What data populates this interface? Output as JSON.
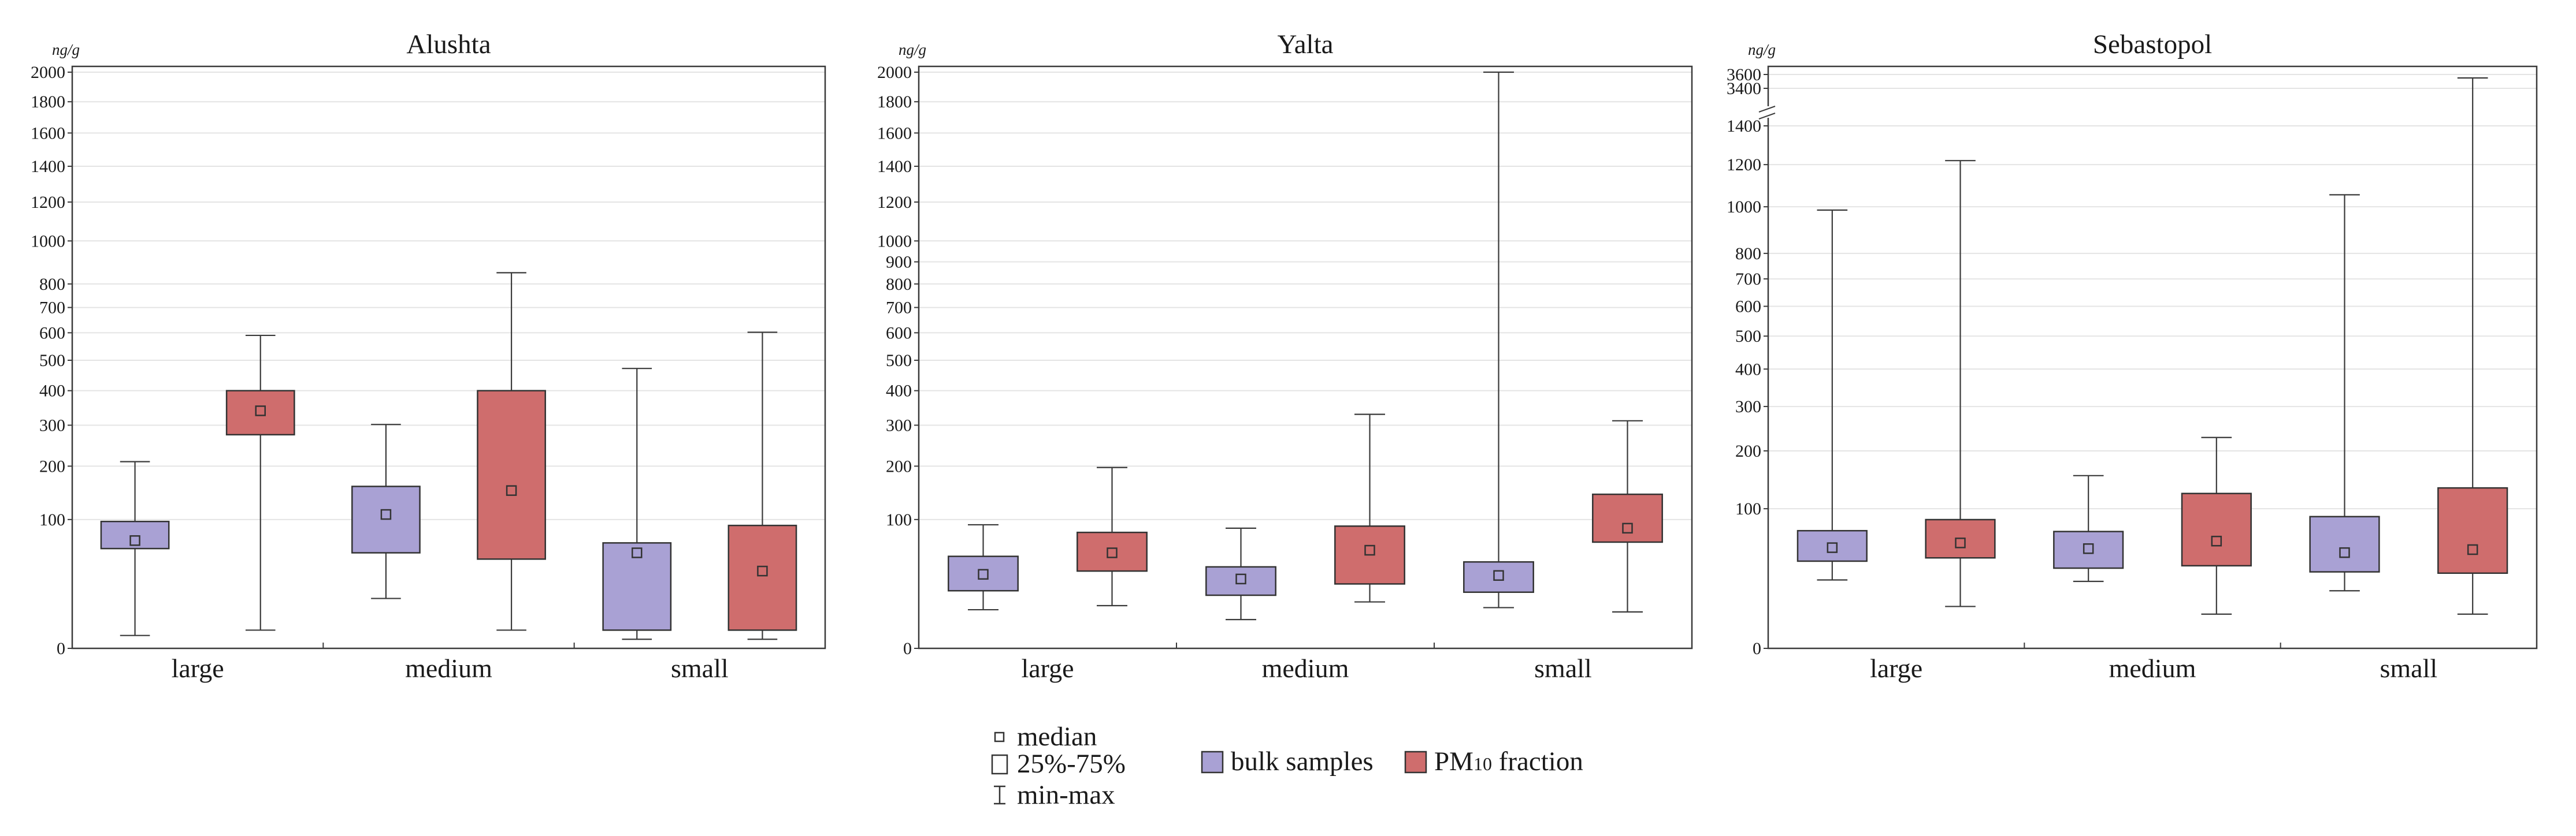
{
  "colors": {
    "bulk": "#a9a1d4",
    "pm10": "#cf6d6d",
    "stroke": "#333333",
    "grid": "#e4e4e4"
  },
  "legend": {
    "median": "median",
    "iqr": "25%-75%",
    "minmax": "min-max",
    "bulk": "bulk samples",
    "pm10_base": "PM",
    "pm10_sub": "10",
    "pm10_rest": " fraction"
  },
  "chart_data": [
    {
      "type": "box",
      "title": "Alushta",
      "unit": "ng/g",
      "y_scale": "sqrt",
      "ylim": [
        0,
        2000
      ],
      "ticks": [
        0,
        100,
        200,
        300,
        400,
        500,
        600,
        700,
        800,
        1000,
        1200,
        1400,
        1600,
        1800,
        2000
      ],
      "categories": [
        "large",
        "medium",
        "small"
      ],
      "series_names": [
        "bulk samples",
        "PM10 fraction"
      ],
      "boxes": [
        {
          "category": "large",
          "series": "bulk samples",
          "min": 1,
          "q1": 60,
          "median": 70,
          "q3": 97,
          "max": 210
        },
        {
          "category": "large",
          "series": "PM10 fraction",
          "min": 2,
          "q1": 275,
          "median": 340,
          "q3": 400,
          "max": 590
        },
        {
          "category": "medium",
          "series": "bulk samples",
          "min": 15,
          "q1": 55,
          "median": 108,
          "q3": 158,
          "max": 302
        },
        {
          "category": "medium",
          "series": "PM10 fraction",
          "min": 2,
          "q1": 48,
          "median": 150,
          "q3": 400,
          "max": 850
        },
        {
          "category": "small",
          "series": "bulk samples",
          "min": 0.5,
          "q1": 2,
          "median": 55,
          "q3": 67,
          "max": 472
        },
        {
          "category": "small",
          "series": "PM10 fraction",
          "min": 0.5,
          "q1": 2,
          "median": 36,
          "q3": 91,
          "max": 602
        }
      ]
    },
    {
      "type": "box",
      "title": "Yalta",
      "unit": "ng/g",
      "y_scale": "sqrt",
      "ylim": [
        0,
        2000
      ],
      "ticks": [
        0,
        100,
        200,
        300,
        400,
        500,
        600,
        700,
        800,
        900,
        1000,
        1200,
        1400,
        1600,
        1800,
        2000
      ],
      "categories": [
        "large",
        "medium",
        "small"
      ],
      "series_names": [
        "bulk samples",
        "PM10 fraction"
      ],
      "boxes": [
        {
          "category": "large",
          "series": "bulk samples",
          "min": 9,
          "q1": 20,
          "median": 33,
          "q3": 51,
          "max": 92
        },
        {
          "category": "large",
          "series": "PM10 fraction",
          "min": 11,
          "q1": 36,
          "median": 55,
          "q3": 81,
          "max": 197
        },
        {
          "category": "medium",
          "series": "bulk samples",
          "min": 5,
          "q1": 17,
          "median": 29,
          "q3": 40,
          "max": 87
        },
        {
          "category": "medium",
          "series": "PM10 fraction",
          "min": 13,
          "q1": 25,
          "median": 58,
          "q3": 90,
          "max": 330
        },
        {
          "category": "small",
          "series": "bulk samples",
          "min": 10,
          "q1": 19,
          "median": 32,
          "q3": 45,
          "max": 2000
        },
        {
          "category": "small",
          "series": "PM10 fraction",
          "min": 8,
          "q1": 68,
          "median": 87,
          "q3": 143,
          "max": 312
        }
      ]
    },
    {
      "type": "box",
      "title": "Sebastopol",
      "unit": "ng/g",
      "y_scale": "sqrt with axis break between 1400 and 3400",
      "ylim": [
        0,
        3600
      ],
      "ticks": [
        0,
        100,
        200,
        300,
        400,
        500,
        600,
        700,
        800,
        1000,
        1200,
        1400,
        3400,
        3600
      ],
      "categories": [
        "large",
        "medium",
        "small"
      ],
      "series_names": [
        "bulk samples",
        "PM10 fraction"
      ],
      "boxes": [
        {
          "category": "large",
          "series": "bulk samples",
          "min": 24,
          "q1": 39,
          "median": 52,
          "q3": 71,
          "max": 985
        },
        {
          "category": "large",
          "series": "PM10 fraction",
          "min": 9,
          "q1": 42,
          "median": 57,
          "q3": 85,
          "max": 1220
        },
        {
          "category": "medium",
          "series": "bulk samples",
          "min": 23,
          "q1": 33,
          "median": 51,
          "q3": 70,
          "max": 153
        },
        {
          "category": "medium",
          "series": "PM10 fraction",
          "min": 6,
          "q1": 35,
          "median": 59,
          "q3": 123,
          "max": 228
        },
        {
          "category": "small",
          "series": "bulk samples",
          "min": 17,
          "q1": 30,
          "median": 47,
          "q3": 89,
          "max": 1055
        },
        {
          "category": "small",
          "series": "PM10 fraction",
          "min": 6,
          "q1": 29,
          "median": 50,
          "q3": 132,
          "max": 3550
        }
      ]
    }
  ]
}
